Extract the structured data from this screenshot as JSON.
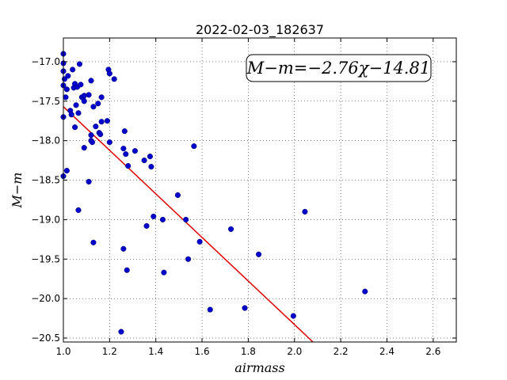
{
  "chart_data": {
    "type": "scatter",
    "title": "2022-02-03_182637",
    "xlabel": "airmass",
    "ylabel": "M−m",
    "annotation": "M−m=−2.76χ−14.81",
    "xlim": [
      1.0,
      2.7
    ],
    "ylim": [
      -20.55,
      -16.7
    ],
    "y_inverted": true,
    "grid": true,
    "x_ticks": [
      "1.0",
      "1.2",
      "1.4",
      "1.6",
      "1.8",
      "2.0",
      "2.2",
      "2.4",
      "2.6"
    ],
    "y_ticks": [
      "−17.0",
      "−17.5",
      "−18.0",
      "−18.5",
      "−19.0",
      "−19.5",
      "−20.0",
      "−20.5"
    ],
    "point_color": "#0000cc",
    "fit_color": "#dd0000",
    "fit": {
      "slope": -2.76,
      "intercept": -14.81
    },
    "points": [
      [
        1.0,
        -16.9
      ],
      [
        1.0,
        -17.02
      ],
      [
        1.0,
        -17.12
      ],
      [
        1.005,
        -17.22
      ],
      [
        1.0,
        -17.3
      ],
      [
        1.01,
        -17.45
      ],
      [
        1.0,
        -17.7
      ],
      [
        1.015,
        -17.35
      ],
      [
        1.02,
        -17.18
      ],
      [
        1.03,
        -17.62
      ],
      [
        1.035,
        -17.67
      ],
      [
        1.04,
        -17.1
      ],
      [
        1.045,
        -17.33
      ],
      [
        1.05,
        -17.28
      ],
      [
        1.055,
        -17.55
      ],
      [
        1.06,
        -17.32
      ],
      [
        1.065,
        -17.65
      ],
      [
        1.07,
        -17.03
      ],
      [
        1.075,
        -17.29
      ],
      [
        1.08,
        -17.45
      ],
      [
        1.085,
        -17.46
      ],
      [
        1.09,
        -17.5
      ],
      [
        1.09,
        -17.43
      ],
      [
        1.05,
        -17.83
      ],
      [
        1.09,
        -18.09
      ],
      [
        1.11,
        -17.42
      ],
      [
        1.12,
        -17.24
      ],
      [
        1.12,
        -17.93
      ],
      [
        1.12,
        -18.0
      ],
      [
        1.125,
        -18.02
      ],
      [
        1.13,
        -17.57
      ],
      [
        1.14,
        -17.82
      ],
      [
        1.15,
        -17.53
      ],
      [
        1.155,
        -17.9
      ],
      [
        1.16,
        -17.92
      ],
      [
        1.165,
        -17.45
      ],
      [
        1.165,
        -17.76
      ],
      [
        1.19,
        -17.75
      ],
      [
        1.195,
        -17.1
      ],
      [
        1.2,
        -17.15
      ],
      [
        1.2,
        -18.02
      ],
      [
        1.22,
        -17.22
      ],
      [
        1.26,
        -18.1
      ],
      [
        1.265,
        -17.88
      ],
      [
        1.27,
        -18.17
      ],
      [
        1.28,
        -18.32
      ],
      [
        1.31,
        -18.13
      ],
      [
        1.35,
        -18.25
      ],
      [
        1.375,
        -18.2
      ],
      [
        1.38,
        -18.33
      ],
      [
        1.0,
        -18.45
      ],
      [
        1.015,
        -18.38
      ],
      [
        1.11,
        -18.52
      ],
      [
        1.065,
        -18.88
      ],
      [
        1.13,
        -19.29
      ],
      [
        1.25,
        -20.42
      ],
      [
        1.26,
        -19.37
      ],
      [
        1.275,
        -19.64
      ],
      [
        1.36,
        -19.08
      ],
      [
        1.39,
        -18.96
      ],
      [
        1.43,
        -19.0
      ],
      [
        1.435,
        -19.67
      ],
      [
        1.495,
        -18.69
      ],
      [
        1.53,
        -19.0
      ],
      [
        1.54,
        -19.5
      ],
      [
        1.565,
        -18.07
      ],
      [
        1.59,
        -19.28
      ],
      [
        1.635,
        -20.14
      ],
      [
        1.725,
        -19.12
      ],
      [
        1.785,
        -20.12
      ],
      [
        1.845,
        -19.44
      ],
      [
        1.995,
        -20.22
      ],
      [
        2.045,
        -18.9
      ],
      [
        2.305,
        -19.91
      ]
    ]
  }
}
